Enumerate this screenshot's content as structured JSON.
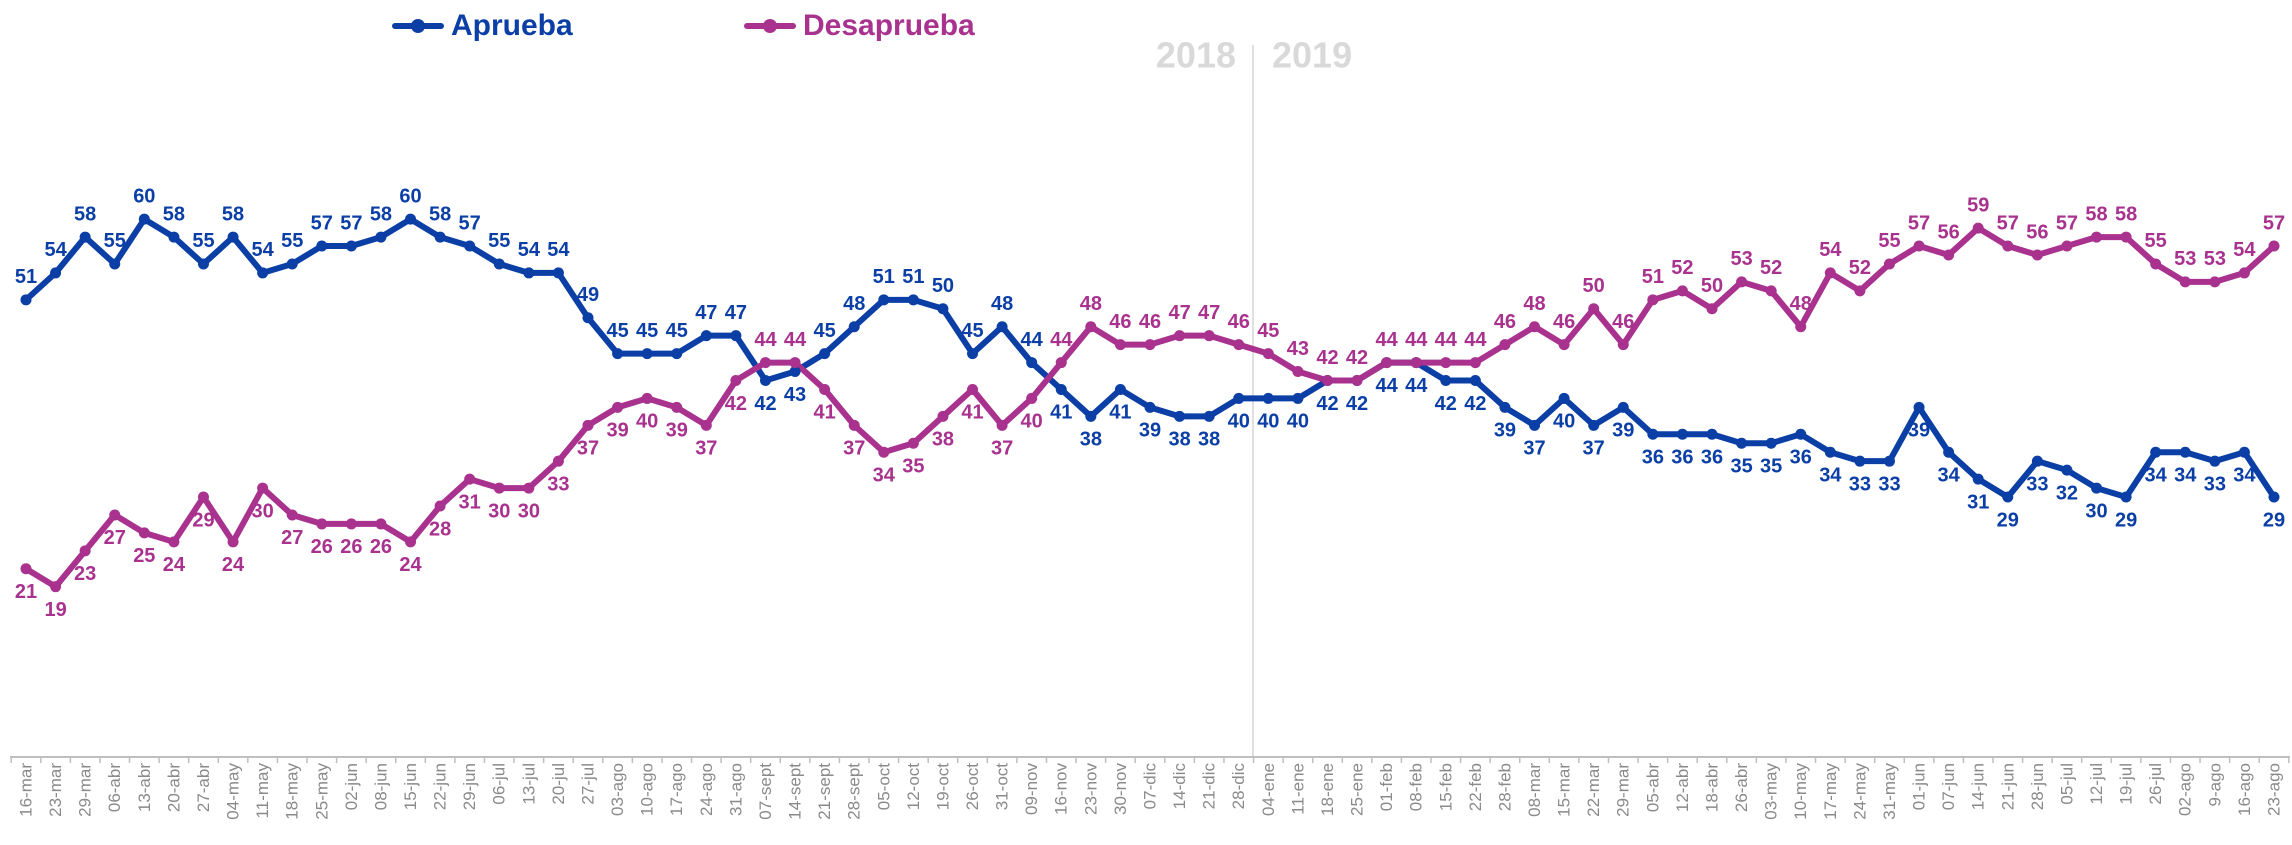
{
  "chart_data": {
    "type": "line",
    "categories": [
      "16-mar",
      "23-mar",
      "29-mar",
      "06-abr",
      "13-abr",
      "20-abr",
      "27-abr",
      "04-may",
      "11-may",
      "18-may",
      "25-may",
      "02-jun",
      "08-jun",
      "15-jun",
      "22-jun",
      "29-jun",
      "06-jul",
      "13-jul",
      "20-jul",
      "27-jul",
      "03-ago",
      "10-ago",
      "17-ago",
      "24-ago",
      "31-ago",
      "07-sept",
      "14-sept",
      "21-sept",
      "28-sept",
      "05-oct",
      "12-oct",
      "19-oct",
      "26-oct",
      "31-oct",
      "09-nov",
      "16-nov",
      "23-nov",
      "30-nov",
      "07-dic",
      "14-dic",
      "21-dic",
      "28-dic",
      "04-ene",
      "11-ene",
      "18-ene",
      "25-ene",
      "01-feb",
      "08-feb",
      "15-feb",
      "22-feb",
      "28-feb",
      "08-mar",
      "15-mar",
      "22-mar",
      "29-mar",
      "05-abr",
      "12-abr",
      "18-abr",
      "26-abr",
      "03-may",
      "10-may",
      "17-may",
      "24-may",
      "31-may",
      "01-jun",
      "07-jun",
      "14-jun",
      "21-jun",
      "28-jun",
      "05-jul",
      "12-jul",
      "19-jul",
      "26-jul",
      "02-ago",
      "9-ago",
      "16-ago",
      "23-ago"
    ],
    "series": [
      {
        "name": "Aprueba",
        "color": "#0b3fa6",
        "values": [
          51,
          54,
          58,
          55,
          60,
          58,
          55,
          58,
          54,
          55,
          57,
          57,
          58,
          60,
          58,
          57,
          55,
          54,
          54,
          49,
          45,
          45,
          45,
          47,
          47,
          42,
          43,
          45,
          48,
          51,
          51,
          50,
          45,
          48,
          44,
          41,
          38,
          41,
          39,
          38,
          38,
          40,
          40,
          40,
          42,
          42,
          44,
          44,
          42,
          42,
          39,
          37,
          40,
          37,
          39,
          36,
          36,
          36,
          35,
          35,
          36,
          34,
          33,
          33,
          39,
          34,
          31,
          29,
          33,
          32,
          30,
          29,
          34,
          34,
          33,
          34,
          29
        ]
      },
      {
        "name": "Desaprueba",
        "color": "#a8328e",
        "values": [
          21,
          19,
          23,
          27,
          25,
          24,
          29,
          24,
          30,
          27,
          26,
          26,
          26,
          24,
          28,
          31,
          30,
          30,
          33,
          37,
          39,
          40,
          39,
          37,
          42,
          44,
          44,
          41,
          37,
          34,
          35,
          38,
          41,
          37,
          40,
          44,
          48,
          46,
          46,
          47,
          47,
          46,
          45,
          43,
          42,
          42,
          44,
          44,
          44,
          44,
          46,
          48,
          46,
          50,
          46,
          51,
          52,
          50,
          53,
          52,
          48,
          54,
          52,
          55,
          57,
          56,
          59,
          57,
          56,
          57,
          58,
          58,
          55,
          53,
          53,
          54,
          57
        ]
      }
    ],
    "annotations": [
      "2018",
      "2019"
    ],
    "ylim": [
      0,
      84
    ]
  }
}
